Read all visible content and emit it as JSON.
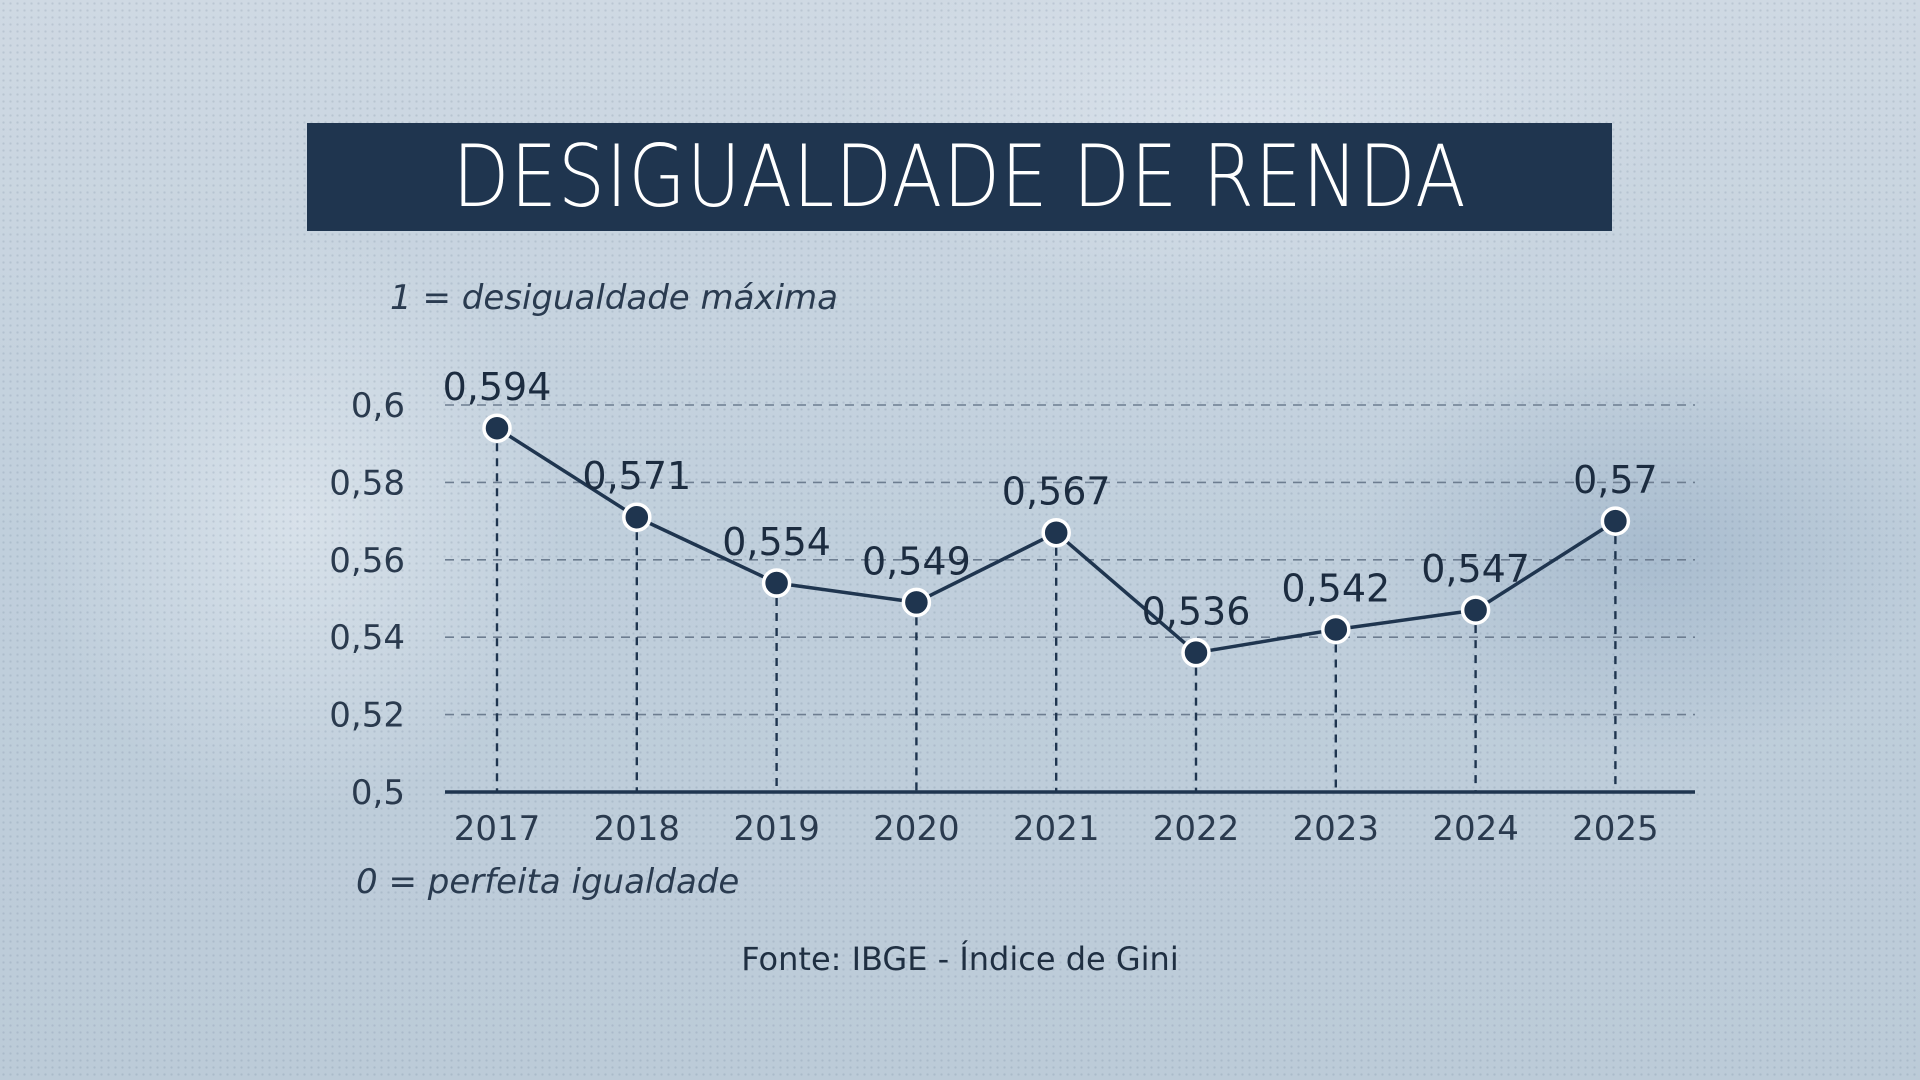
{
  "title": "DESIGUALDADE DE RENDA",
  "note_top": "1 = desigualdade máxima",
  "note_bottom": "0 = perfeita igualdade",
  "source": "Fonte: IBGE - Índice de Gini",
  "colors": {
    "title_bg": "#1f354f",
    "line": "#1f354f",
    "marker_fill": "#1f354f",
    "marker_stroke": "#ffffff",
    "gridline": "#6d7d90"
  },
  "chart_data": {
    "type": "line",
    "title": "DESIGUALDADE DE RENDA",
    "categories": [
      "2017",
      "2018",
      "2019",
      "2020",
      "2021",
      "2022",
      "2023",
      "2024",
      "2025"
    ],
    "series": [
      {
        "values": [
          0.594,
          0.571,
          0.554,
          0.549,
          0.567,
          0.536,
          0.542,
          0.547,
          0.57
        ],
        "data_labels": [
          "0,594",
          "0,571",
          "0,554",
          "0,549",
          "0,567",
          "0,536",
          "0,542",
          "0,547",
          "0,57"
        ]
      }
    ],
    "y_ticks": [
      0.5,
      0.52,
      0.54,
      0.56,
      0.58,
      0.6
    ],
    "y_tick_labels": [
      "0,5",
      "0,52",
      "0,54",
      "0,56",
      "0,58",
      "0,6"
    ],
    "ylim": [
      0.5,
      0.6
    ],
    "xlabel": "",
    "ylabel": "",
    "grid": true,
    "legend": "none"
  }
}
